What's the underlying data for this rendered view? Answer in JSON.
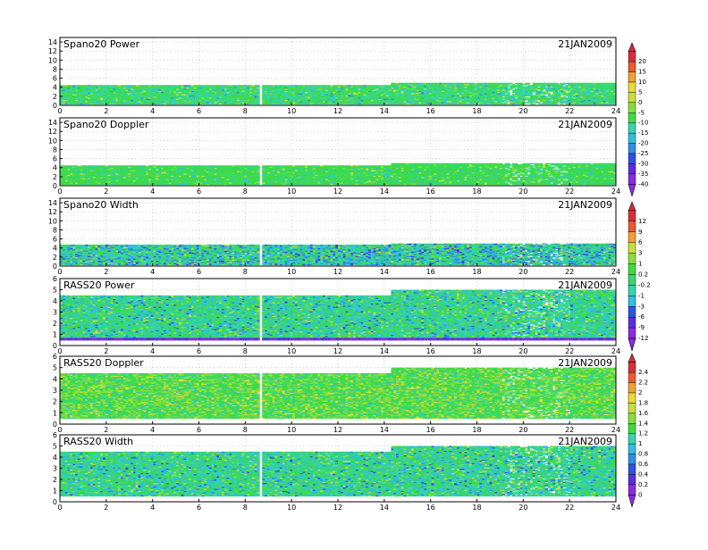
{
  "colors": {
    "scale": [
      "#8a2be2",
      "#5a2ee0",
      "#2f52e8",
      "#2f8fe8",
      "#2fbfe0",
      "#33d6b0",
      "#38d673",
      "#3fdc3f",
      "#8adc3c",
      "#c8e034",
      "#ecd931",
      "#f0a232",
      "#ee5a2e",
      "#d62f3a"
    ],
    "line": "#000000",
    "background": "#ffffff"
  },
  "chart_data": [
    {
      "type": "heatmap",
      "title": "Spano20 Power",
      "date": "21JAN2009",
      "x_ticks": [
        "0",
        "2",
        "4",
        "6",
        "8",
        "10",
        "12",
        "14",
        "16",
        "18",
        "20",
        "22",
        "24"
      ],
      "y_ticks": [
        "0",
        "2",
        "4",
        "6",
        "8",
        "10",
        "12",
        "14"
      ],
      "xlim": [
        0,
        24
      ],
      "ylim": [
        0,
        15
      ],
      "data_top": 5,
      "data_top_early": 4.5,
      "color_level": [
        5,
        7
      ],
      "grid": true
    },
    {
      "type": "heatmap",
      "title": "Spano20 Doppler",
      "date": "21JAN2009",
      "x_ticks": [
        "0",
        "2",
        "4",
        "6",
        "8",
        "10",
        "12",
        "14",
        "16",
        "18",
        "20",
        "22",
        "24"
      ],
      "y_ticks": [
        "0",
        "2",
        "4",
        "6",
        "8",
        "10",
        "12",
        "14"
      ],
      "xlim": [
        0,
        24
      ],
      "ylim": [
        0,
        15
      ],
      "data_top": 5,
      "data_top_early": 4.5,
      "color_level": [
        6,
        7
      ],
      "grid": true
    },
    {
      "type": "heatmap",
      "title": "Spano20 Width",
      "date": "21JAN2009",
      "x_ticks": [
        "0",
        "2",
        "4",
        "6",
        "8",
        "10",
        "12",
        "14",
        "16",
        "18",
        "20",
        "22",
        "24"
      ],
      "y_ticks": [
        "0",
        "2",
        "4",
        "6",
        "8",
        "10",
        "12",
        "14"
      ],
      "xlim": [
        0,
        24
      ],
      "ylim": [
        0,
        15
      ],
      "data_top": 5,
      "data_top_early": 4.8,
      "color_level": [
        3,
        7
      ],
      "grid": true
    },
    {
      "type": "heatmap",
      "title": "RASS20 Power",
      "date": "21JAN2009",
      "x_ticks": [
        "0",
        "2",
        "4",
        "6",
        "8",
        "10",
        "12",
        "14",
        "16",
        "18",
        "20",
        "22",
        "24"
      ],
      "y_ticks": [
        "0",
        "1",
        "2",
        "3",
        "4",
        "5",
        "6"
      ],
      "xlim": [
        0,
        24
      ],
      "ylim": [
        0,
        6
      ],
      "data_top": 5,
      "data_top_early": 4.5,
      "color_level": [
        4,
        7
      ],
      "grid": true
    },
    {
      "type": "heatmap",
      "title": "RASS20 Doppler",
      "date": "21JAN2009",
      "x_ticks": [
        "0",
        "2",
        "4",
        "6",
        "8",
        "10",
        "12",
        "14",
        "16",
        "18",
        "20",
        "22",
        "24"
      ],
      "y_ticks": [
        "0",
        "1",
        "2",
        "3",
        "4",
        "5",
        "6"
      ],
      "xlim": [
        0,
        24
      ],
      "ylim": [
        0,
        6
      ],
      "data_top": 5,
      "data_top_early": 4.5,
      "color_level": [
        6,
        8
      ],
      "grid": true
    },
    {
      "type": "heatmap",
      "title": "RASS20 Width",
      "date": "21JAN2009",
      "x_ticks": [
        "0",
        "2",
        "4",
        "6",
        "8",
        "10",
        "12",
        "14",
        "16",
        "18",
        "20",
        "22",
        "24"
      ],
      "y_ticks": [
        "0",
        "1",
        "2",
        "3",
        "4",
        "5",
        "6"
      ],
      "xlim": [
        0,
        24
      ],
      "ylim": [
        0,
        6
      ],
      "data_top": 5,
      "data_top_early": 4.5,
      "color_level": [
        4,
        7
      ],
      "grid": true
    }
  ],
  "colorbars": [
    {
      "name": "power-colorbar",
      "labels": [
        "20",
        "15",
        "10",
        "5",
        "0",
        "-5",
        "-10",
        "-15",
        "-20",
        "-25",
        "-30",
        "-35",
        "-40"
      ]
    },
    {
      "name": "width-colorbar",
      "labels": [
        "12",
        "9",
        "6",
        "3",
        "1",
        "0.2",
        "-0.2",
        "-1",
        "-3",
        "-6",
        "-9",
        "-12"
      ]
    },
    {
      "name": "doppler-colorbar",
      "labels": [
        "2.4",
        "2.2",
        "2",
        "1.8",
        "1.6",
        "1.4",
        "1.2",
        "1",
        "0.8",
        "0.6",
        "0.4",
        "0.2",
        "0"
      ]
    }
  ]
}
